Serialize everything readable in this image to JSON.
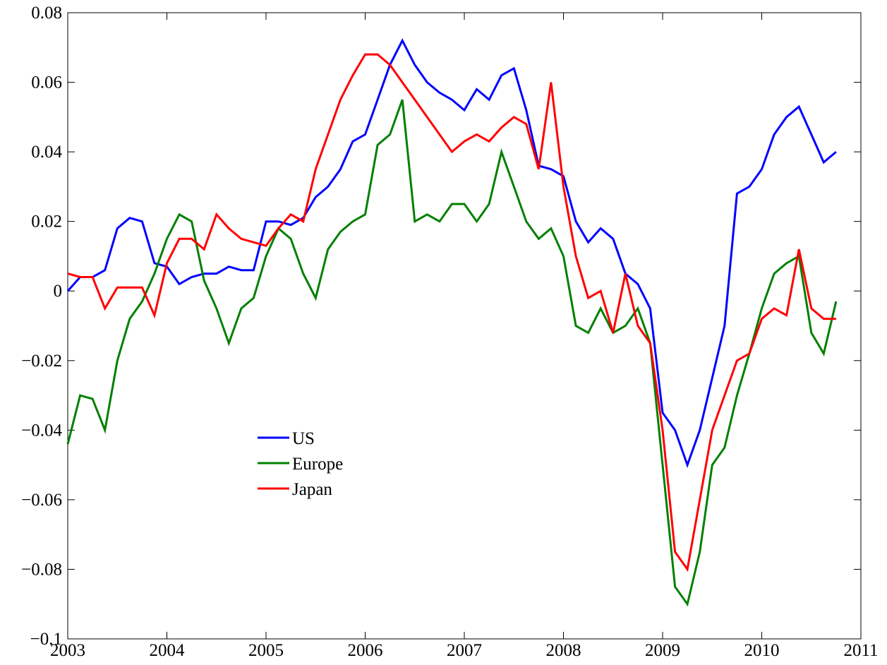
{
  "chart_data": {
    "type": "line",
    "x": [
      2003,
      2003.125,
      2003.25,
      2003.375,
      2003.5,
      2003.625,
      2003.75,
      2003.875,
      2004,
      2004.125,
      2004.25,
      2004.375,
      2004.5,
      2004.625,
      2004.75,
      2004.875,
      2005,
      2005.125,
      2005.25,
      2005.375,
      2005.5,
      2005.625,
      2005.75,
      2005.875,
      2006,
      2006.125,
      2006.25,
      2006.375,
      2006.5,
      2006.625,
      2006.75,
      2006.875,
      2007,
      2007.125,
      2007.25,
      2007.375,
      2007.5,
      2007.625,
      2007.75,
      2007.875,
      2008,
      2008.125,
      2008.25,
      2008.375,
      2008.5,
      2008.625,
      2008.75,
      2008.875,
      2009,
      2009.125,
      2009.25,
      2009.375,
      2009.5,
      2009.625,
      2009.75,
      2009.875,
      2010,
      2010.125,
      2010.25,
      2010.375,
      2010.5,
      2010.625,
      2010.75
    ],
    "series": [
      {
        "name": "US",
        "color": "#0000ff",
        "values": [
          0.0,
          0.004,
          0.004,
          0.006,
          0.018,
          0.021,
          0.02,
          0.008,
          0.007,
          0.002,
          0.004,
          0.005,
          0.005,
          0.007,
          0.006,
          0.006,
          0.02,
          0.02,
          0.019,
          0.021,
          0.027,
          0.03,
          0.035,
          0.043,
          0.045,
          0.055,
          0.065,
          0.072,
          0.065,
          0.06,
          0.057,
          0.055,
          0.052,
          0.058,
          0.055,
          0.062,
          0.064,
          0.052,
          0.036,
          0.035,
          0.033,
          0.02,
          0.014,
          0.018,
          0.015,
          0.005,
          0.002,
          -0.005,
          -0.035,
          -0.04,
          -0.05,
          -0.04,
          -0.025,
          -0.01,
          0.028,
          0.03,
          0.035,
          0.045,
          0.05,
          0.053,
          0.045,
          0.037,
          0.04
        ]
      },
      {
        "name": "Europe",
        "color": "#008000",
        "values": [
          -0.044,
          -0.03,
          -0.031,
          -0.04,
          -0.02,
          -0.008,
          -0.003,
          0.005,
          0.015,
          0.022,
          0.02,
          0.003,
          -0.005,
          -0.015,
          -0.005,
          -0.002,
          0.01,
          0.018,
          0.015,
          0.005,
          -0.002,
          0.012,
          0.017,
          0.02,
          0.022,
          0.042,
          0.045,
          0.055,
          0.02,
          0.022,
          0.02,
          0.025,
          0.025,
          0.02,
          0.025,
          0.04,
          0.03,
          0.02,
          0.015,
          0.018,
          0.01,
          -0.01,
          -0.012,
          -0.005,
          -0.012,
          -0.01,
          -0.005,
          -0.015,
          -0.05,
          -0.085,
          -0.09,
          -0.075,
          -0.05,
          -0.045,
          -0.03,
          -0.018,
          -0.005,
          0.005,
          0.008,
          0.01,
          -0.012,
          -0.018,
          -0.003
        ]
      },
      {
        "name": "Japan",
        "color": "#ff0000",
        "values": [
          0.005,
          0.004,
          0.004,
          -0.005,
          0.001,
          0.001,
          0.001,
          -0.007,
          0.008,
          0.015,
          0.015,
          0.012,
          0.022,
          0.018,
          0.015,
          0.014,
          0.013,
          0.018,
          0.022,
          0.02,
          0.035,
          0.045,
          0.055,
          0.062,
          0.068,
          0.068,
          0.065,
          0.06,
          0.055,
          0.05,
          0.045,
          0.04,
          0.043,
          0.045,
          0.043,
          0.047,
          0.05,
          0.048,
          0.035,
          0.06,
          0.03,
          0.01,
          -0.002,
          0.0,
          -0.012,
          0.005,
          -0.01,
          -0.015,
          -0.04,
          -0.075,
          -0.08,
          -0.06,
          -0.04,
          -0.03,
          -0.02,
          -0.018,
          -0.008,
          -0.005,
          -0.007,
          0.012,
          -0.005,
          -0.008,
          -0.008
        ]
      }
    ],
    "xlim": [
      2003,
      2011
    ],
    "xticks": [
      2003,
      2004,
      2005,
      2006,
      2007,
      2008,
      2009,
      2010,
      2011
    ],
    "ylim": [
      -0.1,
      0.08
    ],
    "yticks": [
      {
        "value": -0.1,
        "label": "−0.1"
      },
      {
        "value": -0.08,
        "label": "−0.08"
      },
      {
        "value": -0.06,
        "label": "−0.06"
      },
      {
        "value": -0.04,
        "label": "−0.04"
      },
      {
        "value": -0.02,
        "label": "−0.02"
      },
      0,
      0.02,
      0.04,
      0.06,
      0.08
    ],
    "grid": false
  }
}
